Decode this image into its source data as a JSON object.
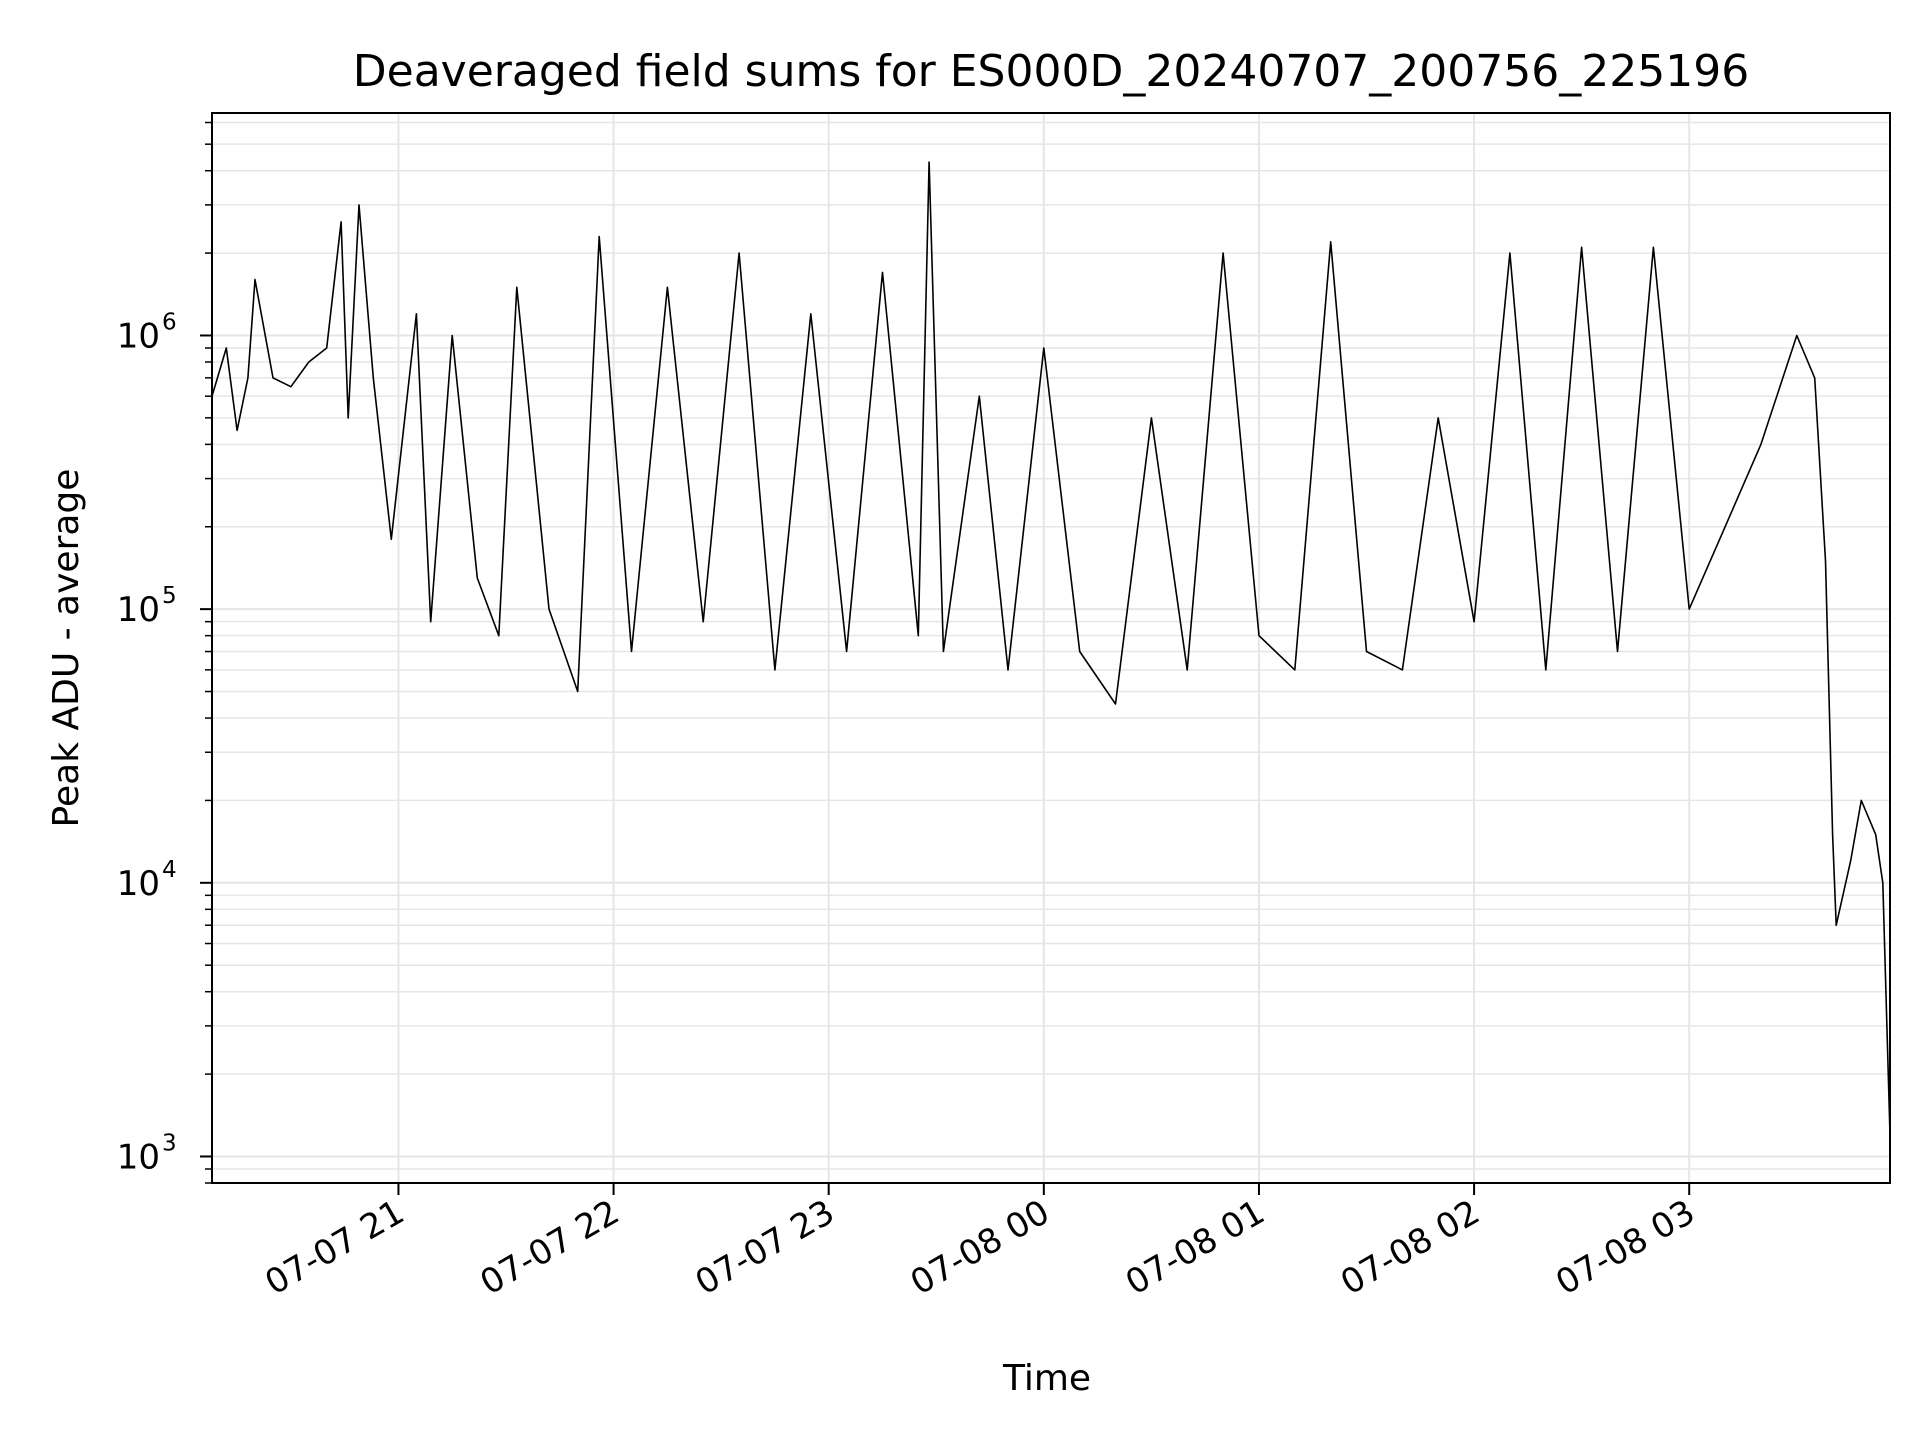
{
  "chart_data": {
    "type": "line",
    "title": "Deaveraged field sums for ES000D_20240707_200756_225196",
    "xlabel": "Time",
    "ylabel": "Peak ADU - average",
    "y_scale": "log",
    "ylim": [
      800,
      6500000
    ],
    "xlim": [
      "2024-07-07 20:08",
      "2024-07-08 03:56"
    ],
    "grid": true,
    "line_color": "#000000",
    "grid_color": "#e6e6e6",
    "x_ticks": [
      {
        "time": "2024-07-07 21:00",
        "label": "07-07 21"
      },
      {
        "time": "2024-07-07 22:00",
        "label": "07-07 22"
      },
      {
        "time": "2024-07-07 23:00",
        "label": "07-07 23"
      },
      {
        "time": "2024-07-08 00:00",
        "label": "07-08 00"
      },
      {
        "time": "2024-07-08 01:00",
        "label": "07-08 01"
      },
      {
        "time": "2024-07-08 02:00",
        "label": "07-08 02"
      },
      {
        "time": "2024-07-08 03:00",
        "label": "07-08 03"
      }
    ],
    "y_ticks": [
      {
        "value": 1000,
        "base": "10",
        "exp": "3"
      },
      {
        "value": 10000,
        "base": "10",
        "exp": "4"
      },
      {
        "value": 100000,
        "base": "10",
        "exp": "5"
      },
      {
        "value": 1000000,
        "base": "10",
        "exp": "6"
      }
    ],
    "series": [
      {
        "points": [
          [
            "2024-07-07 20:08",
            600000
          ],
          [
            "2024-07-07 20:12",
            900000
          ],
          [
            "2024-07-07 20:15",
            450000
          ],
          [
            "2024-07-07 20:18",
            700000
          ],
          [
            "2024-07-07 20:20",
            1600000
          ],
          [
            "2024-07-07 20:25",
            700000
          ],
          [
            "2024-07-07 20:30",
            650000
          ],
          [
            "2024-07-07 20:35",
            800000
          ],
          [
            "2024-07-07 20:40",
            900000
          ],
          [
            "2024-07-07 20:44",
            2600000
          ],
          [
            "2024-07-07 20:46",
            500000
          ],
          [
            "2024-07-07 20:49",
            3000000
          ],
          [
            "2024-07-07 20:53",
            700000
          ],
          [
            "2024-07-07 20:58",
            180000
          ],
          [
            "2024-07-07 21:05",
            1200000
          ],
          [
            "2024-07-07 21:09",
            90000
          ],
          [
            "2024-07-07 21:15",
            1000000
          ],
          [
            "2024-07-07 21:22",
            130000
          ],
          [
            "2024-07-07 21:28",
            80000
          ],
          [
            "2024-07-07 21:33",
            1500000
          ],
          [
            "2024-07-07 21:42",
            100000
          ],
          [
            "2024-07-07 21:50",
            50000
          ],
          [
            "2024-07-07 21:56",
            2300000
          ],
          [
            "2024-07-07 22:05",
            70000
          ],
          [
            "2024-07-07 22:15",
            1500000
          ],
          [
            "2024-07-07 22:25",
            90000
          ],
          [
            "2024-07-07 22:35",
            2000000
          ],
          [
            "2024-07-07 22:45",
            60000
          ],
          [
            "2024-07-07 22:55",
            1200000
          ],
          [
            "2024-07-07 23:05",
            70000
          ],
          [
            "2024-07-07 23:15",
            1700000
          ],
          [
            "2024-07-07 23:25",
            80000
          ],
          [
            "2024-07-07 23:28",
            4300000
          ],
          [
            "2024-07-07 23:32",
            70000
          ],
          [
            "2024-07-07 23:42",
            600000
          ],
          [
            "2024-07-07 23:50",
            60000
          ],
          [
            "2024-07-08 00:00",
            900000
          ],
          [
            "2024-07-08 00:10",
            70000
          ],
          [
            "2024-07-08 00:20",
            45000
          ],
          [
            "2024-07-08 00:30",
            500000
          ],
          [
            "2024-07-08 00:40",
            60000
          ],
          [
            "2024-07-08 00:50",
            2000000
          ],
          [
            "2024-07-08 01:00",
            80000
          ],
          [
            "2024-07-08 01:10",
            60000
          ],
          [
            "2024-07-08 01:20",
            2200000
          ],
          [
            "2024-07-08 01:30",
            70000
          ],
          [
            "2024-07-08 01:40",
            60000
          ],
          [
            "2024-07-08 01:50",
            500000
          ],
          [
            "2024-07-08 02:00",
            90000
          ],
          [
            "2024-07-08 02:10",
            2000000
          ],
          [
            "2024-07-08 02:20",
            60000
          ],
          [
            "2024-07-08 02:30",
            2100000
          ],
          [
            "2024-07-08 02:40",
            70000
          ],
          [
            "2024-07-08 02:50",
            2100000
          ],
          [
            "2024-07-08 03:00",
            100000
          ],
          [
            "2024-07-08 03:10",
            200000
          ],
          [
            "2024-07-08 03:20",
            400000
          ],
          [
            "2024-07-08 03:30",
            1000000
          ],
          [
            "2024-07-08 03:35",
            700000
          ],
          [
            "2024-07-08 03:38",
            150000
          ],
          [
            "2024-07-08 03:40",
            15000
          ],
          [
            "2024-07-08 03:41",
            7000
          ],
          [
            "2024-07-08 03:45",
            12000
          ],
          [
            "2024-07-08 03:48",
            20000
          ],
          [
            "2024-07-08 03:52",
            15000
          ],
          [
            "2024-07-08 03:54",
            10000
          ],
          [
            "2024-07-08 03:56",
            1200
          ]
        ]
      }
    ]
  }
}
